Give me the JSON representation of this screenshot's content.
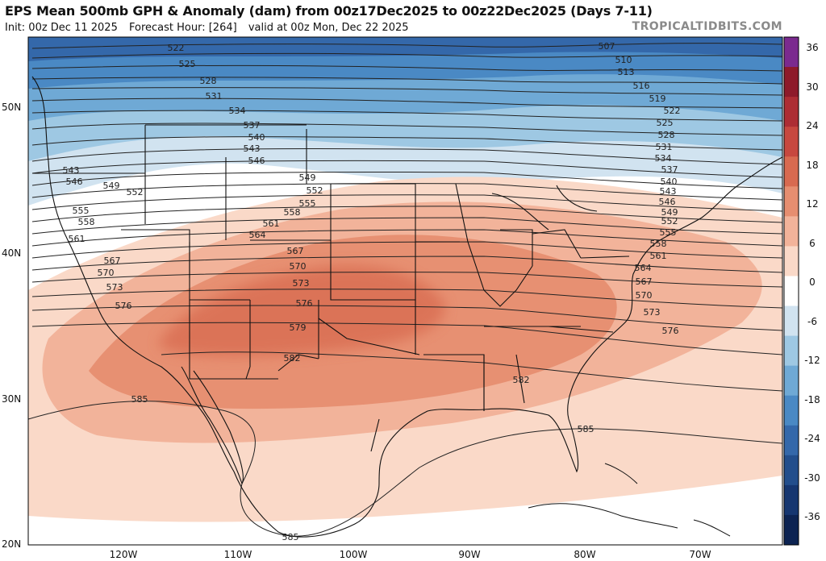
{
  "title": "EPS Mean 500mb GPH & Anomaly (dam) from 00z17Dec2025 to 00z22Dec2025 (Days 7-11)",
  "subtitle": {
    "init": "Init: 00z Dec 11 2025",
    "forecast_hour": "Forecast Hour: [264]",
    "valid": "valid at 00z Mon, Dec 22 2025"
  },
  "brand": "TROPICALTIDBITS.COM",
  "latitude_labels": [
    "50N",
    "40N",
    "30N",
    "20N"
  ],
  "longitude_labels": [
    "120W",
    "110W",
    "100W",
    "90W",
    "80W",
    "70W"
  ],
  "colorbar": {
    "ticks": [
      "36",
      "30",
      "24",
      "18",
      "12",
      "6",
      "0",
      "-6",
      "-12",
      "-18",
      "-24",
      "-30",
      "-36"
    ],
    "colors": [
      "#7b2a8f",
      "#8e1a2a",
      "#ad2d34",
      "#c7483f",
      "#d86a50",
      "#e68e70",
      "#f2b39a",
      "#fad9c8",
      "#ffffff",
      "#d1e3f0",
      "#9ec8e3",
      "#6fa9d5",
      "#4a89c4",
      "#3468aa",
      "#224e8c",
      "#153670",
      "#0c2352"
    ]
  },
  "contour_labels": [
    "507",
    "510",
    "513",
    "516",
    "519",
    "522",
    "525",
    "528",
    "531",
    "534",
    "537",
    "540",
    "543",
    "546",
    "549",
    "552",
    "555",
    "558",
    "561",
    "564",
    "567",
    "570",
    "573",
    "576",
    "579",
    "582",
    "585"
  ],
  "contour_label_groups": {
    "west": [
      "522",
      "525",
      "528",
      "531",
      "534",
      "537",
      "540",
      "543",
      "546",
      "549",
      "552",
      "555",
      "558",
      "561",
      "564",
      "567",
      "570",
      "573",
      "576",
      "579",
      "582"
    ],
    "west_coast": [
      "543",
      "546",
      "549",
      "552",
      "555",
      "558",
      "561",
      "567",
      "570",
      "573",
      "576",
      "585"
    ],
    "east": [
      "507",
      "510",
      "513",
      "516",
      "519",
      "522",
      "525",
      "528",
      "531",
      "534",
      "537",
      "540",
      "543",
      "546",
      "549",
      "552",
      "555",
      "558",
      "561",
      "564",
      "567",
      "570",
      "573",
      "576",
      "582",
      "585"
    ],
    "south": [
      "585"
    ]
  },
  "colors": {
    "land_border": "#111111",
    "state_border": "#222222",
    "contour": "#222222"
  }
}
